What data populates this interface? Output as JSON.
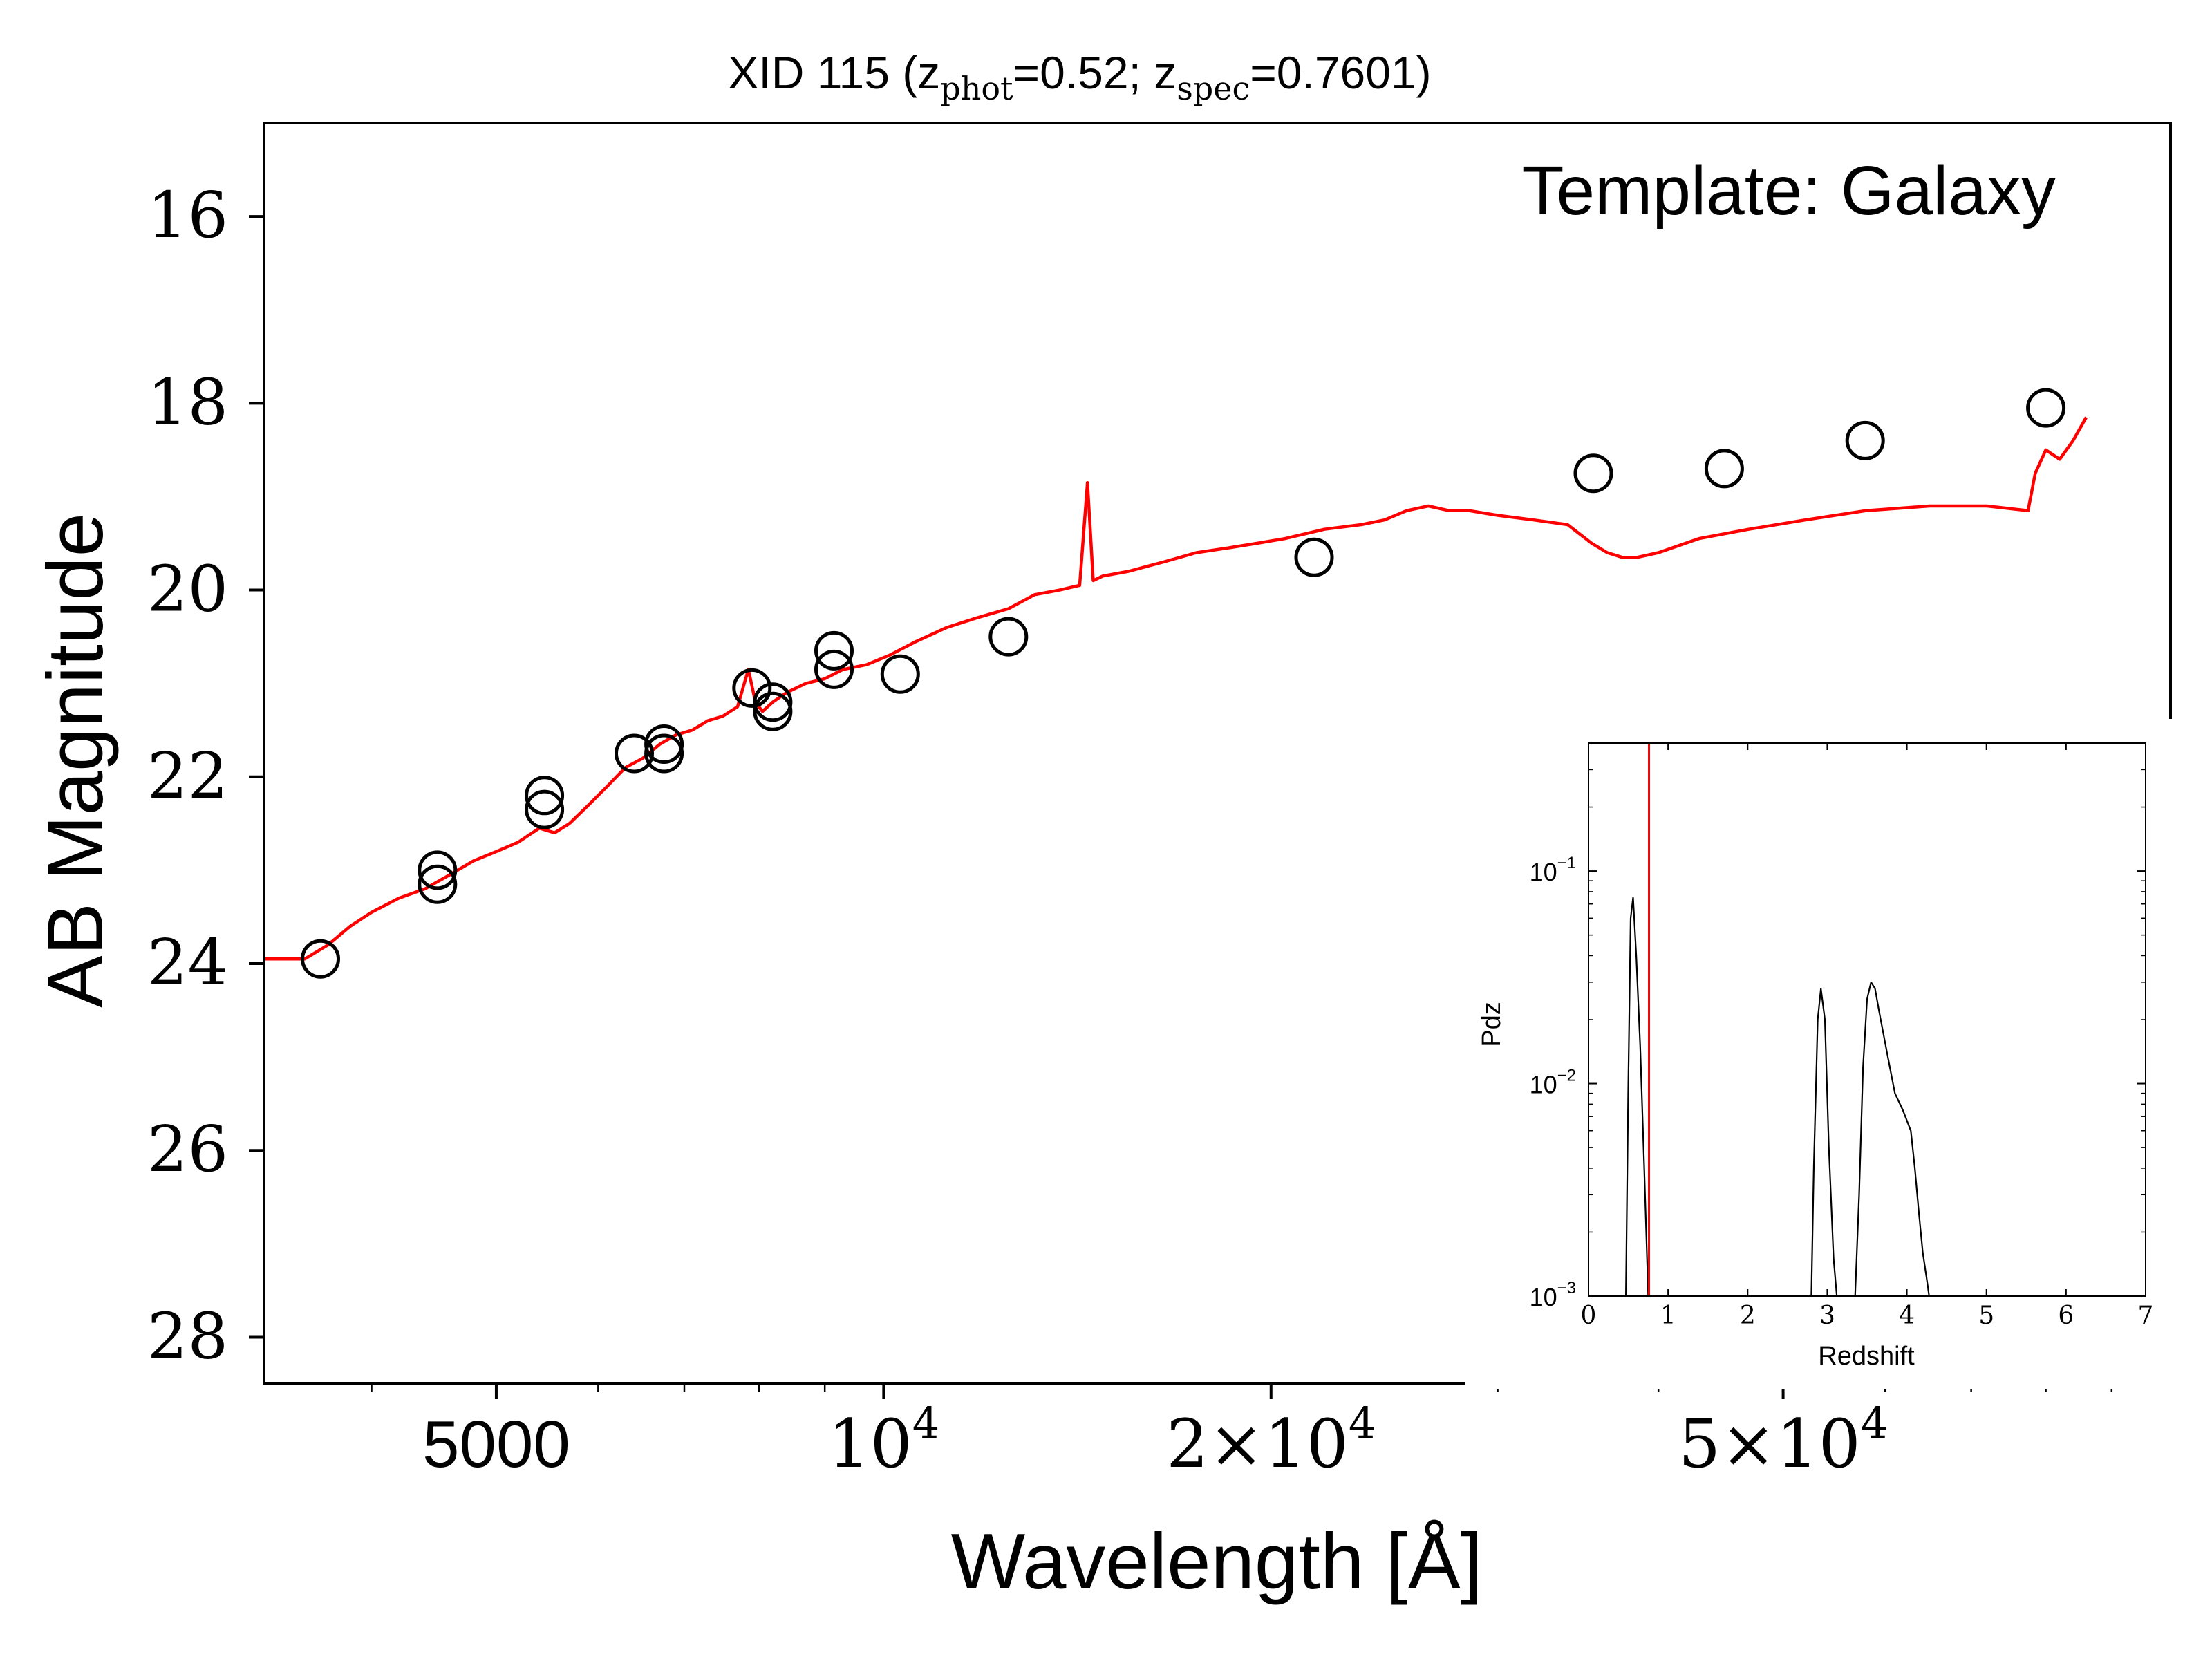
{
  "chart_data": [
    {
      "type": "scatter",
      "title": {
        "prefix": "XID 115 (z",
        "sub1": "phot",
        "mid": "=0.52; z",
        "sub2": "spec",
        "suffix": "=0.7601)"
      },
      "xlabel": "Wavelength [Å]",
      "ylabel": "AB Magnitude",
      "annotation": "Template: Galaxy",
      "x_scale": "log",
      "xlim": [
        3300,
        100000
      ],
      "ylim": [
        28.5,
        15
      ],
      "x_ticks": [
        {
          "value": 5000,
          "base": "5000",
          "sup": ""
        },
        {
          "value": 10000,
          "base": "10",
          "sup": "4"
        },
        {
          "value": 20000,
          "base": "2×10",
          "sup": "4"
        },
        {
          "value": 50000,
          "base": "5×10",
          "sup": "4"
        }
      ],
      "y_ticks": [
        16,
        18,
        20,
        22,
        24,
        26,
        28
      ],
      "grid": false,
      "colors": {
        "model": "#ff0000",
        "points": "#000000"
      },
      "observed": {
        "name": "",
        "x": [
          3650,
          4500,
          4500,
          5450,
          5450,
          6400,
          6750,
          6750,
          7900,
          8200,
          8200,
          9150,
          9150,
          10300,
          12500,
          21600,
          35600,
          45000,
          57900,
          80000
        ],
        "y": [
          23.95,
          23.15,
          23.0,
          22.35,
          22.2,
          21.75,
          21.75,
          21.65,
          21.05,
          21.3,
          21.2,
          20.85,
          20.65,
          20.9,
          20.5,
          19.65,
          18.75,
          18.7,
          18.4,
          18.05
        ]
      },
      "model": {
        "name": "",
        "x": [
          3300,
          3450,
          3550,
          3700,
          3850,
          4000,
          4200,
          4400,
          4600,
          4800,
          5000,
          5200,
          5400,
          5550,
          5700,
          5900,
          6100,
          6300,
          6500,
          6700,
          6900,
          7100,
          7300,
          7500,
          7700,
          7850,
          7950,
          8050,
          8200,
          8400,
          8700,
          9000,
          9300,
          9700,
          10100,
          10600,
          11200,
          11800,
          12500,
          13100,
          13700,
          14200,
          14400,
          14550,
          14800,
          15500,
          16500,
          17500,
          18500,
          19500,
          20500,
          22000,
          23500,
          24500,
          25500,
          26500,
          27500,
          28500,
          30000,
          32000,
          34000,
          35500,
          36500,
          37500,
          38500,
          40000,
          43000,
          47000,
          52000,
          58000,
          65000,
          72000,
          77500,
          78500,
          80000,
          82000,
          84000,
          86000
        ],
        "y": [
          23.95,
          23.95,
          23.95,
          23.8,
          23.6,
          23.45,
          23.3,
          23.2,
          23.05,
          22.9,
          22.8,
          22.7,
          22.55,
          22.6,
          22.5,
          22.3,
          22.1,
          21.9,
          21.8,
          21.65,
          21.55,
          21.5,
          21.4,
          21.35,
          21.25,
          20.85,
          21.2,
          21.3,
          21.2,
          21.1,
          21.0,
          20.95,
          20.85,
          20.8,
          20.7,
          20.55,
          20.4,
          20.3,
          20.2,
          20.05,
          20.0,
          19.95,
          18.85,
          19.9,
          19.85,
          19.8,
          19.7,
          19.6,
          19.55,
          19.5,
          19.45,
          19.35,
          19.3,
          19.25,
          19.15,
          19.1,
          19.15,
          19.15,
          19.2,
          19.25,
          19.3,
          19.5,
          19.6,
          19.65,
          19.65,
          19.6,
          19.45,
          19.35,
          19.25,
          19.15,
          19.1,
          19.1,
          19.15,
          18.75,
          18.5,
          18.6,
          18.4,
          18.15
        ]
      }
    },
    {
      "type": "line",
      "xlabel": "Redshift",
      "ylabel": "Pdz",
      "x_scale": "linear",
      "y_scale": "log",
      "xlim": [
        0,
        7
      ],
      "ylim": [
        0.001,
        0.4
      ],
      "x_ticks": [
        0,
        1,
        2,
        3,
        4,
        5,
        6,
        7
      ],
      "y_ticks": [
        {
          "value": 0.1,
          "base": "10",
          "sup": "−1"
        },
        {
          "value": 0.01,
          "base": "10",
          "sup": "−2"
        },
        {
          "value": 0.001,
          "base": "10",
          "sup": "−3"
        }
      ],
      "z_spec_line": 0.76,
      "colors": {
        "pdz": "#000000",
        "z_spec_line": "#ff0000"
      },
      "pdz": {
        "name": "",
        "x": [
          0.47,
          0.5,
          0.53,
          0.56,
          0.6,
          0.65,
          0.7,
          0.75,
          2.8,
          2.83,
          2.88,
          2.92,
          2.97,
          3.02,
          3.08,
          3.12,
          3.35,
          3.4,
          3.45,
          3.5,
          3.55,
          3.6,
          3.65,
          3.75,
          3.85,
          3.95,
          4.05,
          4.1,
          4.15,
          4.2,
          4.25,
          4.28
        ],
        "y": [
          0.001,
          0.01,
          0.06,
          0.075,
          0.04,
          0.015,
          0.004,
          0.001,
          0.001,
          0.004,
          0.02,
          0.028,
          0.02,
          0.005,
          0.0015,
          0.001,
          0.001,
          0.003,
          0.012,
          0.025,
          0.03,
          0.028,
          0.022,
          0.014,
          0.009,
          0.0075,
          0.006,
          0.004,
          0.0025,
          0.0016,
          0.0012,
          0.001
        ]
      }
    }
  ]
}
